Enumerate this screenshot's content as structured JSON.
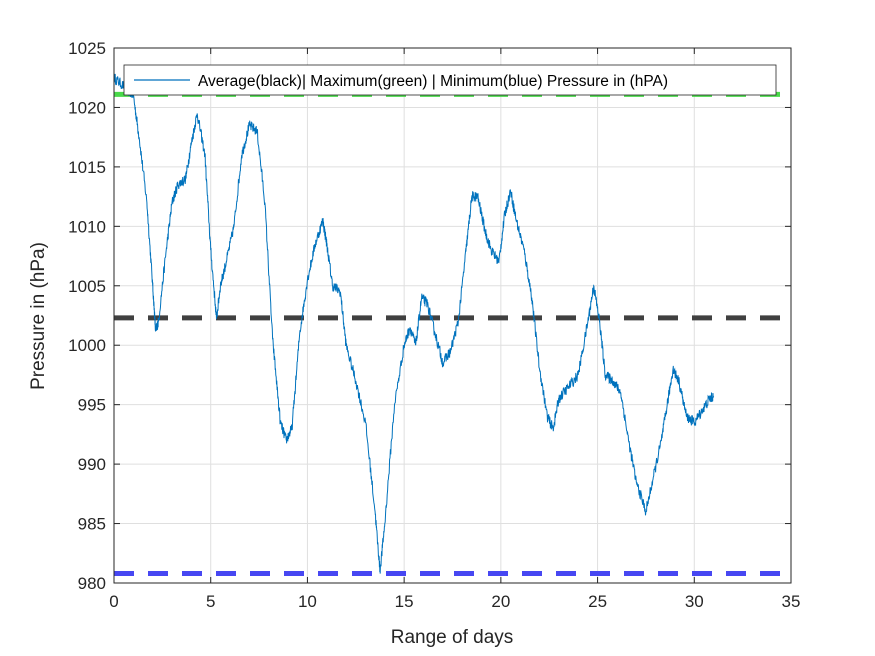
{
  "chart_data": {
    "type": "line",
    "title": "",
    "xlabel": "Range of days",
    "ylabel": "Pressure in (hPa)",
    "xlim": [
      0,
      35
    ],
    "ylim": [
      980,
      1025
    ],
    "xticks": [
      0,
      5,
      10,
      15,
      20,
      25,
      30,
      35
    ],
    "yticks": [
      980,
      985,
      990,
      995,
      1000,
      1005,
      1010,
      1015,
      1020,
      1025
    ],
    "grid": true,
    "legend": {
      "placement": "top",
      "entries": [
        "Average(black)| Maximum(green) | Minimum(blue) Pressure in (hPA)"
      ]
    },
    "reference_lines": [
      {
        "label": "Maximum",
        "y": 1021.1,
        "color": "#4ad94a",
        "style": "dashed"
      },
      {
        "label": "Average",
        "y": 1002.3,
        "color": "#404040",
        "style": "dashed"
      },
      {
        "label": "Minimum",
        "y": 980.8,
        "color": "#4747f2",
        "style": "dashed"
      }
    ],
    "series": [
      {
        "color": "#0072bd",
        "x": [
          0,
          0.5,
          1.0,
          1.3,
          1.7,
          2.0,
          2.15,
          2.3,
          2.7,
          3.0,
          3.3,
          3.7,
          4.0,
          4.3,
          4.7,
          5.0,
          5.3,
          5.5,
          5.8,
          6.2,
          6.6,
          7.0,
          7.4,
          7.8,
          8.2,
          8.6,
          8.9,
          9.2,
          9.6,
          10.0,
          10.4,
          10.8,
          11.0,
          11.3,
          11.7,
          12.0,
          12.5,
          13.0,
          13.5,
          13.75,
          14.0,
          14.5,
          15.0,
          15.3,
          15.6,
          15.9,
          16.2,
          16.6,
          17.0,
          17.4,
          17.8,
          18.2,
          18.5,
          18.8,
          19.2,
          19.5,
          19.9,
          20.2,
          20.5,
          20.8,
          21.2,
          21.6,
          22.0,
          22.4,
          22.7,
          23.0,
          23.5,
          24.0,
          24.5,
          24.8,
          25.1,
          25.4,
          25.8,
          26.2,
          26.6,
          27.0,
          27.5,
          27.9,
          28.3,
          28.6,
          28.9,
          29.2,
          29.6,
          30.0,
          30.4,
          30.8,
          31.0
        ],
        "y": [
          1022.5,
          1021.8,
          1021.0,
          1017.5,
          1012.0,
          1005.0,
          1001.2,
          1002.0,
          1008.0,
          1012.0,
          1013.5,
          1014.0,
          1017.0,
          1019.5,
          1016.0,
          1008.0,
          1002.2,
          1005.0,
          1007.0,
          1010.0,
          1016.0,
          1018.5,
          1018.0,
          1012.0,
          1000.5,
          993.5,
          992.0,
          993.0,
          1001.0,
          1005.5,
          1008.5,
          1010.5,
          1008.5,
          1005.0,
          1004.5,
          1000.0,
          997.0,
          993.5,
          986.0,
          981.0,
          985.0,
          995.0,
          1000.0,
          1001.5,
          1000.0,
          1004.0,
          1003.5,
          1001.0,
          998.5,
          999.5,
          1002.0,
          1008.0,
          1012.5,
          1012.5,
          1009.5,
          1008.0,
          1007.0,
          1011.0,
          1013.0,
          1010.5,
          1008.0,
          1004.0,
          998.0,
          994.0,
          993.0,
          995.5,
          996.5,
          997.5,
          1002.0,
          1005.0,
          1002.0,
          997.5,
          997.0,
          996.0,
          992.0,
          988.5,
          986.0,
          989.0,
          992.0,
          995.0,
          998.0,
          997.0,
          994.0,
          993.5,
          994.5,
          995.5,
          995.7
        ]
      }
    ]
  }
}
